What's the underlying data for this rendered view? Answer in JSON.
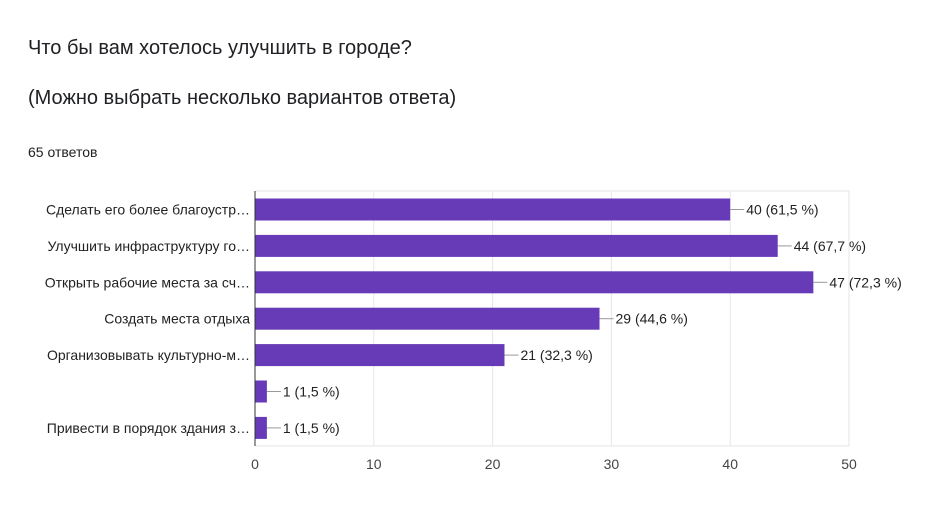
{
  "question": {
    "title": "Что бы вам хотелось улучшить в городе?",
    "note": "(Можно выбрать несколько вариантов ответа)",
    "responses": "65 ответов"
  },
  "colors": {
    "bar": "#673ab7",
    "grid": "#e6e6e6",
    "axis": "#333333",
    "leader": "#999999"
  },
  "chart_data": {
    "type": "bar",
    "orientation": "horizontal",
    "categories": [
      "Сделать его более благоустр…",
      "Улучшить инфраструктуру го…",
      "Открыть рабочие места за сч…",
      "Создать места отдыха",
      "Организовывать культурно-м…",
      "",
      "Привести в порядок здания з…"
    ],
    "values": [
      40,
      44,
      47,
      29,
      21,
      1,
      1
    ],
    "value_labels": [
      "40 (61,5 %)",
      "44 (67,7 %)",
      "47 (72,3 %)",
      "29 (44,6 %)",
      "21 (32,3 %)",
      "1 (1,5 %)",
      "1 (1,5 %)"
    ],
    "xlim": [
      0,
      50
    ],
    "xticks": [
      0,
      10,
      20,
      30,
      40,
      50
    ],
    "grid": true
  }
}
